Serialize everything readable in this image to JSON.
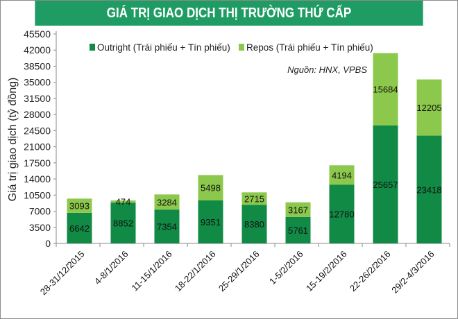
{
  "chart_data": {
    "type": "bar",
    "stacked": true,
    "title": "GIÁ TRỊ GIAO DỊCH THỊ TRƯỜNG THỨ CẤP",
    "ylabel": "Giá trị giao dịch (tỷ đồng)",
    "xlabel": "",
    "source_note": "Nguồn: HNX, VPBS",
    "ylim": [
      0,
      45500
    ],
    "yticks": [
      0,
      3500,
      7000,
      10500,
      14000,
      17500,
      21000,
      24500,
      28000,
      31500,
      35000,
      38500,
      42000,
      45500
    ],
    "grid": false,
    "legend_position": "top",
    "categories": [
      "28-31/12/2015",
      "4-8/1/2016",
      "11-15/1/2016",
      "18-22/1/2016",
      "25-29/1/2016",
      "1-5/2/2016",
      "15-19/2/2016",
      "22-26/2/2016",
      "29/2-4/3/2016"
    ],
    "series": [
      {
        "name": "Outright (Trái phiếu + Tín phiếu)",
        "color": "#108a45",
        "values": [
          6642,
          8852,
          7354,
          9351,
          8380,
          5761,
          12780,
          25657,
          23418
        ]
      },
      {
        "name": "Repos (Trái phiếu + Tín phiếu)",
        "color": "#8cc84b",
        "values": [
          3093,
          474,
          3284,
          5498,
          2715,
          3167,
          4194,
          15684,
          12205
        ]
      }
    ]
  }
}
